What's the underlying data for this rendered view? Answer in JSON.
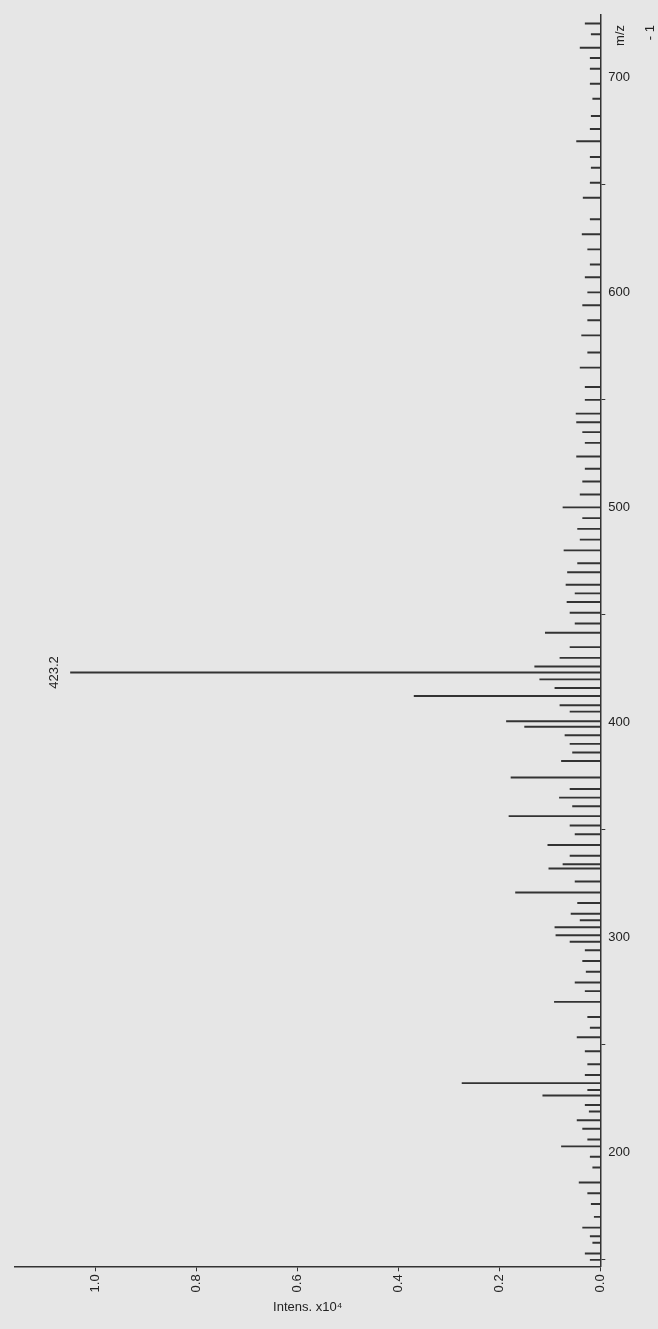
{
  "chart_data": {
    "type": "bar",
    "orientation": "horizontal",
    "xlabel": "Intens. x10⁴",
    "x": [
      150,
      153,
      158,
      161,
      165,
      170,
      176,
      181,
      186,
      193,
      198,
      202.8,
      206,
      211,
      214.9,
      219,
      222,
      226.5,
      229,
      232.2,
      236,
      241,
      247,
      253.5,
      258,
      263,
      270,
      275,
      279,
      284,
      289,
      294,
      298,
      301,
      304.7,
      308,
      311,
      316,
      320.9,
      326,
      332,
      334,
      338,
      343,
      348,
      352,
      356.4,
      361,
      365,
      369,
      374.4,
      382,
      386,
      390,
      394,
      398,
      400.5,
      405,
      408,
      412.3,
      416,
      420,
      423.2,
      426,
      430,
      435,
      441.7,
      446,
      451,
      456,
      460,
      464,
      469.8,
      474,
      480,
      485,
      490,
      495,
      500,
      506,
      512,
      518,
      523.7,
      530,
      535,
      539.6,
      543.6,
      550,
      556,
      565,
      572,
      580,
      587,
      594,
      600,
      607,
      613,
      620,
      627,
      634,
      644,
      651,
      658,
      663,
      670.3,
      676,
      682,
      690,
      697,
      704,
      709,
      713.8,
      720,
      725
    ],
    "values": [
      0.02,
      0.03,
      0.015,
      0.02,
      0.035,
      0.012,
      0.018,
      0.025,
      0.042,
      0.015,
      0.02,
      0.077,
      0.025,
      0.035,
      0.046,
      0.022,
      0.03,
      0.114,
      0.025,
      0.274,
      0.03,
      0.025,
      0.03,
      0.046,
      0.02,
      0.025,
      0.091,
      0.03,
      0.05,
      0.028,
      0.035,
      0.03,
      0.06,
      0.088,
      0.09,
      0.04,
      0.058,
      0.045,
      0.168,
      0.05,
      0.102,
      0.074,
      0.06,
      0.104,
      0.05,
      0.06,
      0.181,
      0.055,
      0.081,
      0.06,
      0.177,
      0.077,
      0.055,
      0.06,
      0.07,
      0.15,
      0.186,
      0.06,
      0.08,
      0.369,
      0.09,
      0.12,
      1.05,
      0.13,
      0.08,
      0.06,
      0.109,
      0.05,
      0.06,
      0.066,
      0.05,
      0.068,
      0.065,
      0.045,
      0.072,
      0.04,
      0.045,
      0.035,
      0.074,
      0.04,
      0.035,
      0.03,
      0.047,
      0.03,
      0.035,
      0.047,
      0.048,
      0.03,
      0.03,
      0.04,
      0.025,
      0.037,
      0.025,
      0.035,
      0.025,
      0.03,
      0.02,
      0.025,
      0.036,
      0.02,
      0.034,
      0.02,
      0.018,
      0.02,
      0.047,
      0.02,
      0.018,
      0.015,
      0.02,
      0.02,
      0.02,
      0.04,
      0.018,
      0.03
    ],
    "color": "#333333",
    "xlim": [
      1.16,
      0
    ],
    "xticks": [
      {
        "value": 0,
        "label": "0.0"
      },
      0.2,
      0.4,
      0.6,
      0.8,
      {
        "value": 1,
        "label": "1.0"
      }
    ],
    "ylim": [
      147,
      729
    ],
    "yticks": [
      200,
      300,
      400,
      500,
      600,
      700
    ],
    "annotations": [
      {
        "text": "423.2",
        "x": 1.05,
        "y": 423.2
      },
      "- 1",
      "m/z"
    ]
  }
}
